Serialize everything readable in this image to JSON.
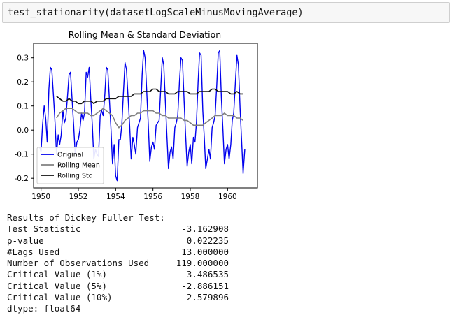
{
  "code_cell": {
    "code": "test_stationarity(datasetLogScaleMinusMovingAverage)"
  },
  "chart_data": {
    "type": "line",
    "title": "Rolling Mean & Standard Deviation",
    "xlabel": "",
    "ylabel": "",
    "xlim": [
      1949.6,
      1961.6
    ],
    "ylim": [
      -0.24,
      0.36
    ],
    "xticks": [
      "1950",
      "1952",
      "1954",
      "1956",
      "1958",
      "1960"
    ],
    "yticks": [
      "0.3",
      "0.2",
      "0.1",
      "0.0",
      "-0.1",
      "-0.2"
    ],
    "grid": false,
    "legend_position": "lower-left",
    "series": [
      {
        "name": "Original",
        "color": "#0000ee",
        "x": [
          1949.92,
          1950.0,
          1950.08,
          1950.17,
          1950.25,
          1950.33,
          1950.42,
          1950.5,
          1950.58,
          1950.67,
          1950.75,
          1950.83,
          1950.92,
          1951.0,
          1951.08,
          1951.17,
          1951.25,
          1951.33,
          1951.42,
          1951.5,
          1951.58,
          1951.67,
          1951.75,
          1951.83,
          1951.92,
          1952.0,
          1952.08,
          1952.17,
          1952.25,
          1952.33,
          1952.42,
          1952.5,
          1952.58,
          1952.67,
          1952.75,
          1952.83,
          1952.92,
          1953.0,
          1953.08,
          1953.17,
          1953.25,
          1953.33,
          1953.42,
          1953.5,
          1953.58,
          1953.67,
          1953.75,
          1953.83,
          1953.92,
          1954.0,
          1954.08,
          1954.17,
          1954.25,
          1954.33,
          1954.42,
          1954.5,
          1954.58,
          1954.67,
          1954.75,
          1954.83,
          1954.92,
          1955.0,
          1955.08,
          1955.17,
          1955.25,
          1955.33,
          1955.42,
          1955.5,
          1955.58,
          1955.67,
          1955.75,
          1955.83,
          1955.92,
          1956.0,
          1956.08,
          1956.17,
          1956.25,
          1956.33,
          1956.42,
          1956.5,
          1956.58,
          1956.67,
          1956.75,
          1956.83,
          1956.92,
          1957.0,
          1957.08,
          1957.17,
          1957.25,
          1957.33,
          1957.42,
          1957.5,
          1957.58,
          1957.67,
          1957.75,
          1957.83,
          1957.92,
          1958.0,
          1958.08,
          1958.17,
          1958.25,
          1958.33,
          1958.42,
          1958.5,
          1958.58,
          1958.67,
          1958.75,
          1958.83,
          1958.92,
          1959.0,
          1959.08,
          1959.17,
          1959.25,
          1959.33,
          1959.42,
          1959.5,
          1959.58,
          1959.67,
          1959.75,
          1959.83,
          1959.92,
          1960.0,
          1960.08,
          1960.17,
          1960.25,
          1960.33,
          1960.42,
          1960.5,
          1960.58,
          1960.67,
          1960.75,
          1960.83,
          1960.92
        ],
        "y": [
          -0.07,
          -0.09,
          0.02,
          0.1,
          0.05,
          -0.05,
          0.17,
          0.26,
          0.25,
          0.14,
          0.03,
          -0.1,
          -0.02,
          -0.06,
          -0.02,
          0.08,
          0.03,
          0.05,
          0.14,
          0.23,
          0.24,
          0.12,
          0.02,
          -0.1,
          -0.05,
          -0.04,
          0.0,
          0.07,
          0.04,
          0.07,
          0.24,
          0.22,
          0.26,
          0.12,
          0.02,
          -0.12,
          -0.08,
          -0.1,
          -0.11,
          0.06,
          0.08,
          0.06,
          0.15,
          0.26,
          0.25,
          0.12,
          0.0,
          -0.14,
          -0.06,
          -0.19,
          -0.21,
          -0.04,
          -0.04,
          0.02,
          0.16,
          0.28,
          0.25,
          0.13,
          0.02,
          -0.12,
          -0.03,
          -0.06,
          -0.1,
          0.01,
          0.03,
          0.05,
          0.23,
          0.33,
          0.3,
          0.15,
          0.02,
          -0.13,
          -0.07,
          -0.05,
          -0.08,
          0.02,
          0.03,
          0.04,
          0.18,
          0.3,
          0.27,
          0.11,
          -0.03,
          -0.16,
          -0.09,
          -0.07,
          -0.12,
          0.01,
          0.03,
          0.06,
          0.2,
          0.3,
          0.29,
          0.12,
          -0.02,
          -0.15,
          -0.09,
          -0.06,
          -0.14,
          -0.03,
          -0.05,
          0.03,
          0.2,
          0.32,
          0.31,
          0.08,
          -0.03,
          -0.16,
          -0.12,
          -0.08,
          -0.12,
          0.01,
          0.03,
          0.06,
          0.19,
          0.32,
          0.33,
          0.13,
          0.0,
          -0.14,
          -0.08,
          -0.06,
          -0.12,
          -0.06,
          0.04,
          0.07,
          0.2,
          0.31,
          0.27,
          0.09,
          -0.04,
          -0.18,
          -0.08
        ]
      },
      {
        "name": "Rolling Mean",
        "color": "#808080",
        "x": [
          1950.83,
          1951.0,
          1951.17,
          1951.33,
          1951.5,
          1951.67,
          1951.83,
          1952.0,
          1952.17,
          1952.33,
          1952.5,
          1952.67,
          1952.83,
          1953.0,
          1953.17,
          1953.33,
          1953.5,
          1953.67,
          1953.83,
          1954.0,
          1954.17,
          1954.33,
          1954.5,
          1954.67,
          1954.83,
          1955.0,
          1955.17,
          1955.33,
          1955.5,
          1955.67,
          1955.83,
          1956.0,
          1956.17,
          1956.33,
          1956.5,
          1956.67,
          1956.83,
          1957.0,
          1957.17,
          1957.33,
          1957.5,
          1957.67,
          1957.83,
          1958.0,
          1958.17,
          1958.33,
          1958.5,
          1958.67,
          1958.83,
          1959.0,
          1959.17,
          1959.33,
          1959.5,
          1959.67,
          1959.83,
          1960.0,
          1960.17,
          1960.33,
          1960.5,
          1960.67,
          1960.83
        ],
        "y": [
          0.05,
          0.07,
          0.08,
          0.09,
          0.09,
          0.09,
          0.08,
          0.07,
          0.07,
          0.07,
          0.07,
          0.06,
          0.06,
          0.07,
          0.08,
          0.09,
          0.08,
          0.07,
          0.06,
          0.03,
          0.01,
          0.02,
          0.04,
          0.05,
          0.06,
          0.06,
          0.07,
          0.07,
          0.08,
          0.08,
          0.08,
          0.08,
          0.07,
          0.07,
          0.06,
          0.06,
          0.05,
          0.05,
          0.05,
          0.05,
          0.05,
          0.04,
          0.04,
          0.03,
          0.02,
          0.02,
          0.02,
          0.02,
          0.03,
          0.04,
          0.05,
          0.06,
          0.06,
          0.06,
          0.07,
          0.06,
          0.06,
          0.06,
          0.05,
          0.05,
          0.04
        ]
      },
      {
        "name": "Rolling Std",
        "color": "#111111",
        "x": [
          1950.83,
          1951.0,
          1951.17,
          1951.33,
          1951.5,
          1951.67,
          1951.83,
          1952.0,
          1952.17,
          1952.33,
          1952.5,
          1952.67,
          1952.83,
          1953.0,
          1953.17,
          1953.33,
          1953.5,
          1953.67,
          1953.83,
          1954.0,
          1954.17,
          1954.33,
          1954.5,
          1954.67,
          1954.83,
          1955.0,
          1955.17,
          1955.33,
          1955.5,
          1955.67,
          1955.83,
          1956.0,
          1956.17,
          1956.33,
          1956.5,
          1956.67,
          1956.83,
          1957.0,
          1957.17,
          1957.33,
          1957.5,
          1957.67,
          1957.83,
          1958.0,
          1958.17,
          1958.33,
          1958.5,
          1958.67,
          1958.83,
          1959.0,
          1959.17,
          1959.33,
          1959.5,
          1959.67,
          1959.83,
          1960.0,
          1960.17,
          1960.33,
          1960.5,
          1960.67,
          1960.83
        ],
        "y": [
          0.14,
          0.13,
          0.12,
          0.12,
          0.13,
          0.12,
          0.12,
          0.11,
          0.11,
          0.12,
          0.12,
          0.12,
          0.11,
          0.12,
          0.12,
          0.12,
          0.13,
          0.13,
          0.13,
          0.13,
          0.14,
          0.14,
          0.14,
          0.14,
          0.14,
          0.15,
          0.15,
          0.15,
          0.16,
          0.16,
          0.16,
          0.17,
          0.17,
          0.16,
          0.16,
          0.16,
          0.15,
          0.15,
          0.15,
          0.16,
          0.16,
          0.16,
          0.16,
          0.15,
          0.15,
          0.15,
          0.16,
          0.16,
          0.16,
          0.16,
          0.17,
          0.17,
          0.16,
          0.16,
          0.16,
          0.16,
          0.15,
          0.15,
          0.16,
          0.15,
          0.15
        ]
      }
    ]
  },
  "output": {
    "header": "Results of Dickey Fuller Test:",
    "rows": [
      {
        "label": "Test Statistic",
        "value": "-3.162908"
      },
      {
        "label": "p-value",
        "value": "0.022235"
      },
      {
        "label": "#Lags Used",
        "value": "13.000000"
      },
      {
        "label": "Number of Observations Used",
        "value": "119.000000"
      },
      {
        "label": "Critical Value (1%)",
        "value": "-3.486535"
      },
      {
        "label": "Critical Value (5%)",
        "value": "-2.886151"
      },
      {
        "label": "Critical Value (10%)",
        "value": "-2.579896"
      }
    ],
    "dtype": "dtype: float64"
  }
}
